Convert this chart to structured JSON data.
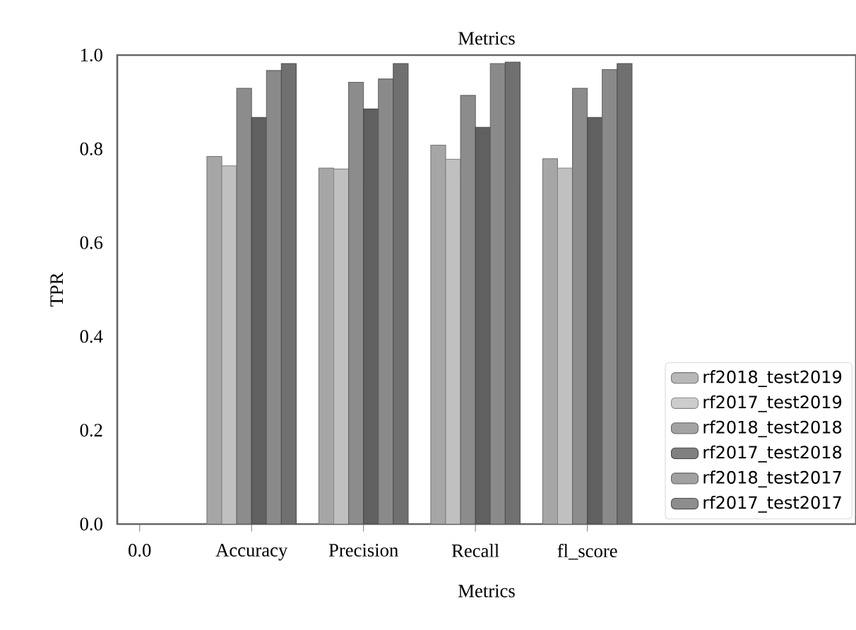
{
  "chart_data": {
    "type": "bar",
    "title": "Metrics",
    "xlabel": "Metrics",
    "ylabel": "TPR",
    "categories": [
      "0.0",
      "Accuracy",
      "Precision",
      "Recall",
      "fl_score"
    ],
    "ylim": [
      0,
      1
    ],
    "yticks": [
      {
        "value": 0,
        "label": "0.0"
      },
      {
        "value": 0.2,
        "label": "0.2"
      },
      {
        "value": 0.4,
        "label": "0.4"
      },
      {
        "value": 0.6,
        "label": "0.6"
      },
      {
        "value": 0.8,
        "label": "0.8"
      },
      {
        "value": 1,
        "label": "1.0"
      }
    ],
    "legend": "bottom right",
    "grid": false,
    "series": [
      {
        "name": "rf2018_test2019",
        "color": "#a6a6a6",
        "values": [
          null,
          0.784,
          0.759,
          0.808,
          0.779
        ]
      },
      {
        "name": "rf2017_test2019",
        "color": "#c0c0c0",
        "values": [
          null,
          0.764,
          0.757,
          0.778,
          0.759
        ]
      },
      {
        "name": "rf2018_test2018",
        "color": "#8c8c8c",
        "values": [
          null,
          0.929,
          0.942,
          0.914,
          0.929
        ]
      },
      {
        "name": "rf2017_test2018",
        "color": "#606060",
        "values": [
          null,
          0.867,
          0.885,
          0.846,
          0.867
        ]
      },
      {
        "name": "rf2018_test2017",
        "color": "#8a8a8a",
        "values": [
          null,
          0.967,
          0.949,
          0.982,
          0.969
        ]
      },
      {
        "name": "rf2017_test2017",
        "color": "#707070",
        "values": [
          null,
          0.982,
          0.982,
          0.985,
          0.982
        ]
      }
    ]
  }
}
